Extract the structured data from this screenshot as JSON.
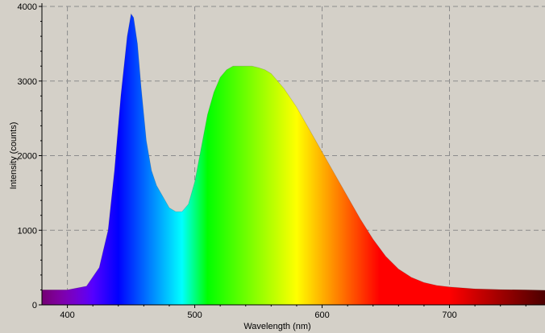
{
  "chart_data": {
    "type": "area",
    "title": "",
    "xlabel": "Wavelength (nm)",
    "ylabel": "Intensity (counts)",
    "xlim": [
      380,
      775
    ],
    "ylim": [
      0,
      4000
    ],
    "x_ticks": [
      400,
      500,
      600,
      700
    ],
    "y_ticks": [
      0,
      1000,
      2000,
      3000,
      4000
    ],
    "grid": true,
    "fill": "wavelength-spectrum-gradient",
    "series": [
      {
        "name": "Intensity",
        "x": [
          380,
          400,
          415,
          425,
          432,
          437,
          442,
          447,
          450,
          452,
          455,
          458,
          462,
          466,
          470,
          475,
          480,
          485,
          490,
          495,
          500,
          505,
          510,
          515,
          520,
          525,
          530,
          535,
          540,
          545,
          550,
          555,
          560,
          565,
          570,
          580,
          590,
          600,
          610,
          620,
          630,
          640,
          650,
          660,
          670,
          680,
          690,
          700,
          720,
          740,
          760,
          775
        ],
        "y": [
          200,
          200,
          250,
          500,
          1000,
          1800,
          2800,
          3600,
          3900,
          3850,
          3500,
          2900,
          2200,
          1800,
          1600,
          1450,
          1300,
          1250,
          1250,
          1350,
          1650,
          2100,
          2550,
          2850,
          3050,
          3150,
          3200,
          3200,
          3200,
          3200,
          3180,
          3150,
          3100,
          3000,
          2900,
          2650,
          2350,
          2050,
          1750,
          1450,
          1150,
          880,
          650,
          480,
          370,
          300,
          260,
          240,
          215,
          205,
          200,
          195
        ]
      }
    ]
  },
  "colors": {
    "background": "#d4d0c8",
    "grid": "#8c8c8c",
    "axis": "#000000"
  }
}
